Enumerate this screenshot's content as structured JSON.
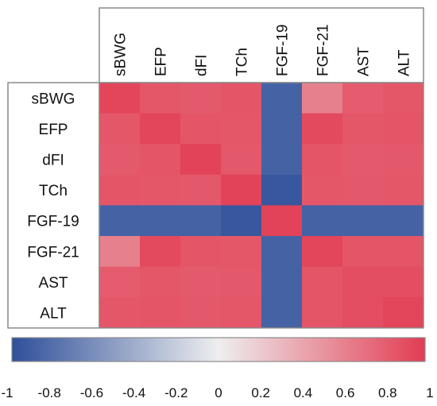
{
  "chart_data": {
    "type": "heatmap",
    "rows": [
      "sBWG",
      "EFP",
      "dFI",
      "TCh",
      "FGF-19",
      "FGF-21",
      "AST",
      "ALT"
    ],
    "cols": [
      "sBWG",
      "EFP",
      "dFI",
      "TCh",
      "FGF-19",
      "FGF-21",
      "AST",
      "ALT"
    ],
    "values": [
      [
        0.95,
        0.85,
        0.83,
        0.86,
        -0.88,
        0.62,
        0.82,
        0.85
      ],
      [
        0.85,
        0.95,
        0.86,
        0.85,
        -0.88,
        0.92,
        0.85,
        0.86
      ],
      [
        0.83,
        0.86,
        0.96,
        0.84,
        -0.88,
        0.86,
        0.83,
        0.84
      ],
      [
        0.86,
        0.85,
        0.84,
        0.96,
        -0.95,
        0.85,
        0.84,
        0.85
      ],
      [
        -0.88,
        -0.88,
        -0.88,
        -0.95,
        0.96,
        -0.88,
        -0.88,
        -0.88
      ],
      [
        0.62,
        0.92,
        0.86,
        0.85,
        -0.88,
        0.95,
        0.86,
        0.86
      ],
      [
        0.82,
        0.85,
        0.83,
        0.84,
        -0.88,
        0.86,
        0.9,
        0.9
      ],
      [
        0.85,
        0.86,
        0.84,
        0.85,
        -0.88,
        0.86,
        0.9,
        0.95
      ]
    ],
    "colorbar": {
      "range": [
        -1,
        1
      ],
      "ticks": [
        "-1",
        "-0.8",
        "-0.6",
        "-0.4",
        "-0.2",
        "0",
        "0.2",
        "0.4",
        "0.6",
        "0.8",
        "1"
      ],
      "colors": {
        "negative": "#2e4f9a",
        "zero": "#eeeeee",
        "positive": "#e23c52"
      }
    },
    "grid": false,
    "title": "",
    "xlabel": "",
    "ylabel": ""
  }
}
